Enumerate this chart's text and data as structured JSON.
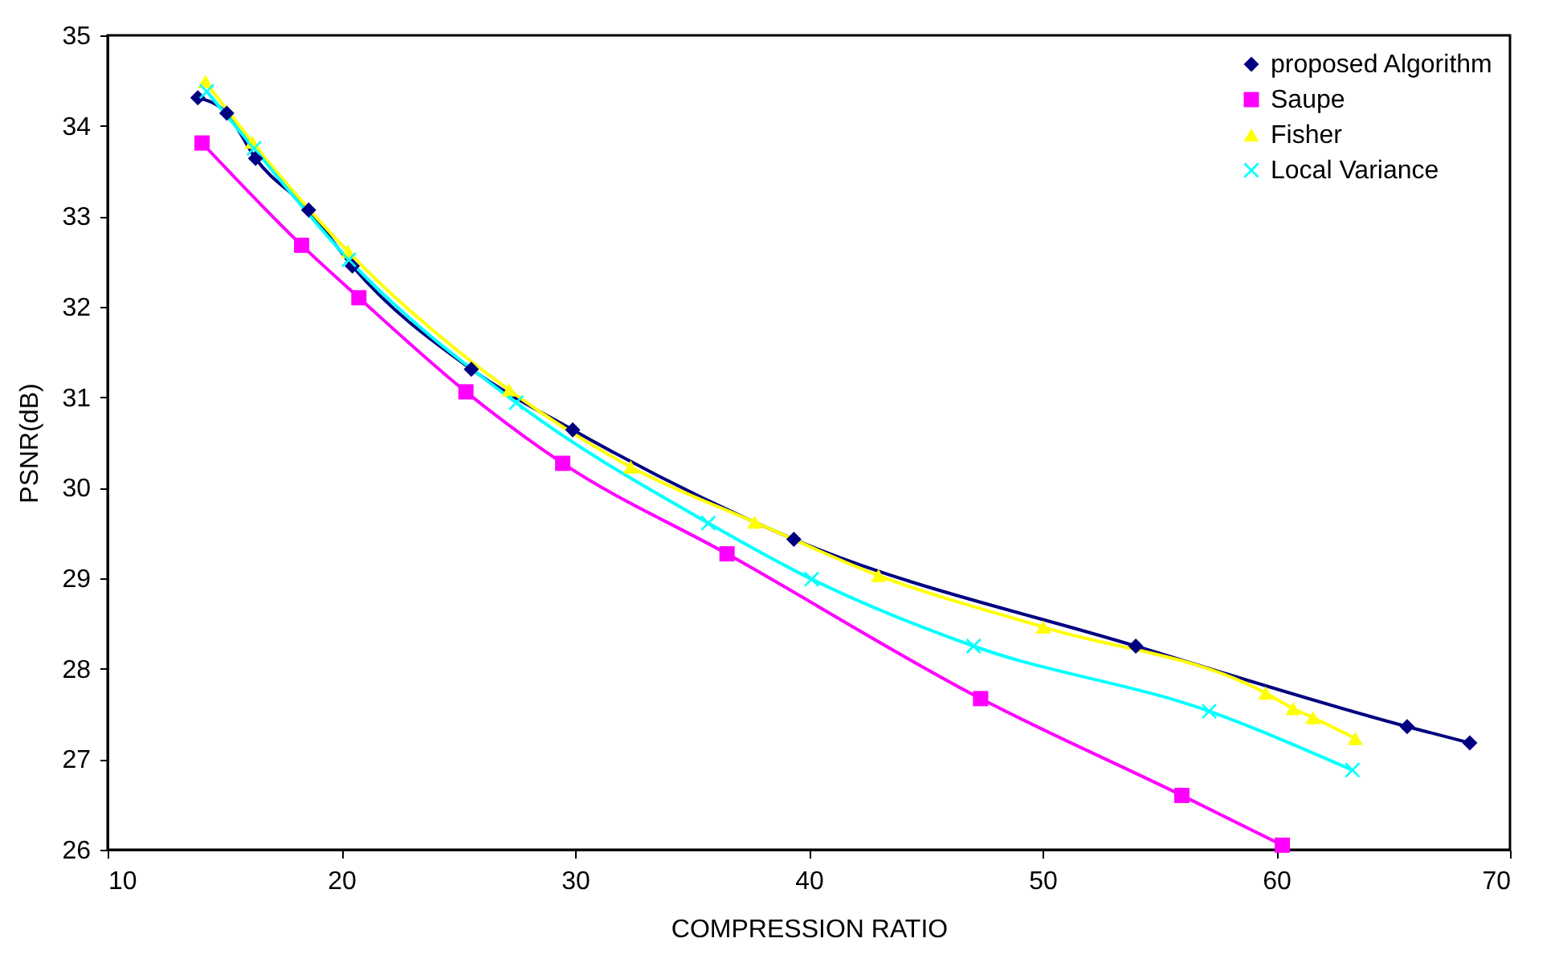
{
  "chart_data": {
    "type": "line",
    "xlabel": "COMPRESSION RATIO",
    "ylabel": "PSNR(dB)",
    "xlim": [
      10,
      70
    ],
    "xticks": [
      10,
      20,
      30,
      40,
      50,
      60,
      70
    ],
    "ylim": [
      26,
      35
    ],
    "yticks": [
      26,
      27,
      28,
      29,
      30,
      31,
      32,
      33,
      34,
      35
    ],
    "grid": false,
    "legend": "top right",
    "series": [
      {
        "name": "proposed Algorithm",
        "color": "#000080",
        "marker": "diamond",
        "x": [
          13.86,
          15.1,
          16.33,
          18.6,
          20.47,
          25.56,
          29.9,
          39.36,
          53.99,
          65.6,
          68.28
        ],
        "values": [
          34.31,
          34.14,
          33.64,
          33.07,
          32.45,
          31.31,
          30.64,
          29.43,
          28.25,
          27.36,
          27.18
        ]
      },
      {
        "name": "Saupe",
        "color": "#ff00ff",
        "marker": "square",
        "x": [
          14.04,
          18.3,
          20.75,
          25.33,
          29.47,
          36.5,
          47.35,
          55.96,
          60.26
        ],
        "values": [
          33.81,
          32.68,
          32.1,
          31.06,
          30.27,
          29.27,
          27.67,
          26.6,
          26.05
        ]
      },
      {
        "name": "Fisher",
        "color": "#ffff00",
        "marker": "triangle",
        "x": [
          14.18,
          16.19,
          20.29,
          27.18,
          32.38,
          37.69,
          42.98,
          50.03,
          59.55,
          60.72,
          61.57,
          63.38
        ],
        "values": [
          34.49,
          33.82,
          32.61,
          31.08,
          30.23,
          29.62,
          29.03,
          28.46,
          27.73,
          27.56,
          27.46,
          27.23
        ]
      },
      {
        "name": "Local Variance",
        "color": "#00ffff",
        "marker": "cross",
        "x": [
          14.24,
          16.26,
          20.32,
          27.48,
          35.7,
          40.12,
          47.05,
          57.13,
          63.26
        ],
        "values": [
          34.38,
          33.75,
          32.52,
          30.94,
          29.61,
          28.99,
          28.25,
          27.53,
          26.88
        ]
      }
    ]
  }
}
